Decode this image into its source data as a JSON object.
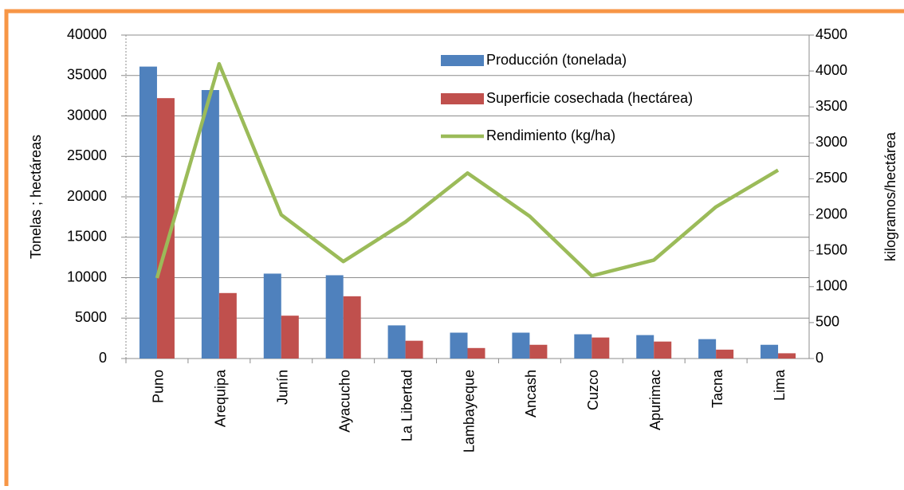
{
  "chart_data": {
    "type": "bar_line",
    "categories": [
      "Puno",
      "Arequipa",
      "Junín",
      "Ayacucho",
      "La Libertad",
      "Lambayeque",
      "Ancash",
      "Cuzco",
      "Apurimac",
      "Tacna",
      "Lima"
    ],
    "series": [
      {
        "name": "Producción (tonelada)",
        "color": "#4f81bd",
        "type": "bar",
        "values": [
          36100,
          33200,
          10500,
          10300,
          4100,
          3200,
          3200,
          3000,
          2900,
          2400,
          1700
        ]
      },
      {
        "name": "Superficie cosechada (hectárea)",
        "color": "#c0504d",
        "type": "bar",
        "values": [
          32200,
          8100,
          5300,
          7700,
          2200,
          1300,
          1700,
          2600,
          2100,
          1100,
          650
        ]
      },
      {
        "name": "Rendimiento (kg/ha)",
        "color": "#9bbb59",
        "type": "line",
        "axis": "y2",
        "values": [
          1120,
          4100,
          2000,
          1350,
          1900,
          2580,
          1980,
          1150,
          1370,
          2110,
          2620
        ]
      }
    ],
    "ylabel": "Tonelas ;  hectáreas",
    "y2label": "kilogramos/hectárea",
    "ylim": [
      0,
      40000
    ],
    "yticks": [
      0,
      5000,
      10000,
      15000,
      20000,
      25000,
      30000,
      35000,
      40000
    ],
    "y2lim": [
      0,
      4500
    ],
    "y2ticks": [
      0,
      500,
      1000,
      1500,
      2000,
      2500,
      3000,
      3500,
      4000,
      4500
    ],
    "grid": true,
    "legend": "top-right"
  }
}
